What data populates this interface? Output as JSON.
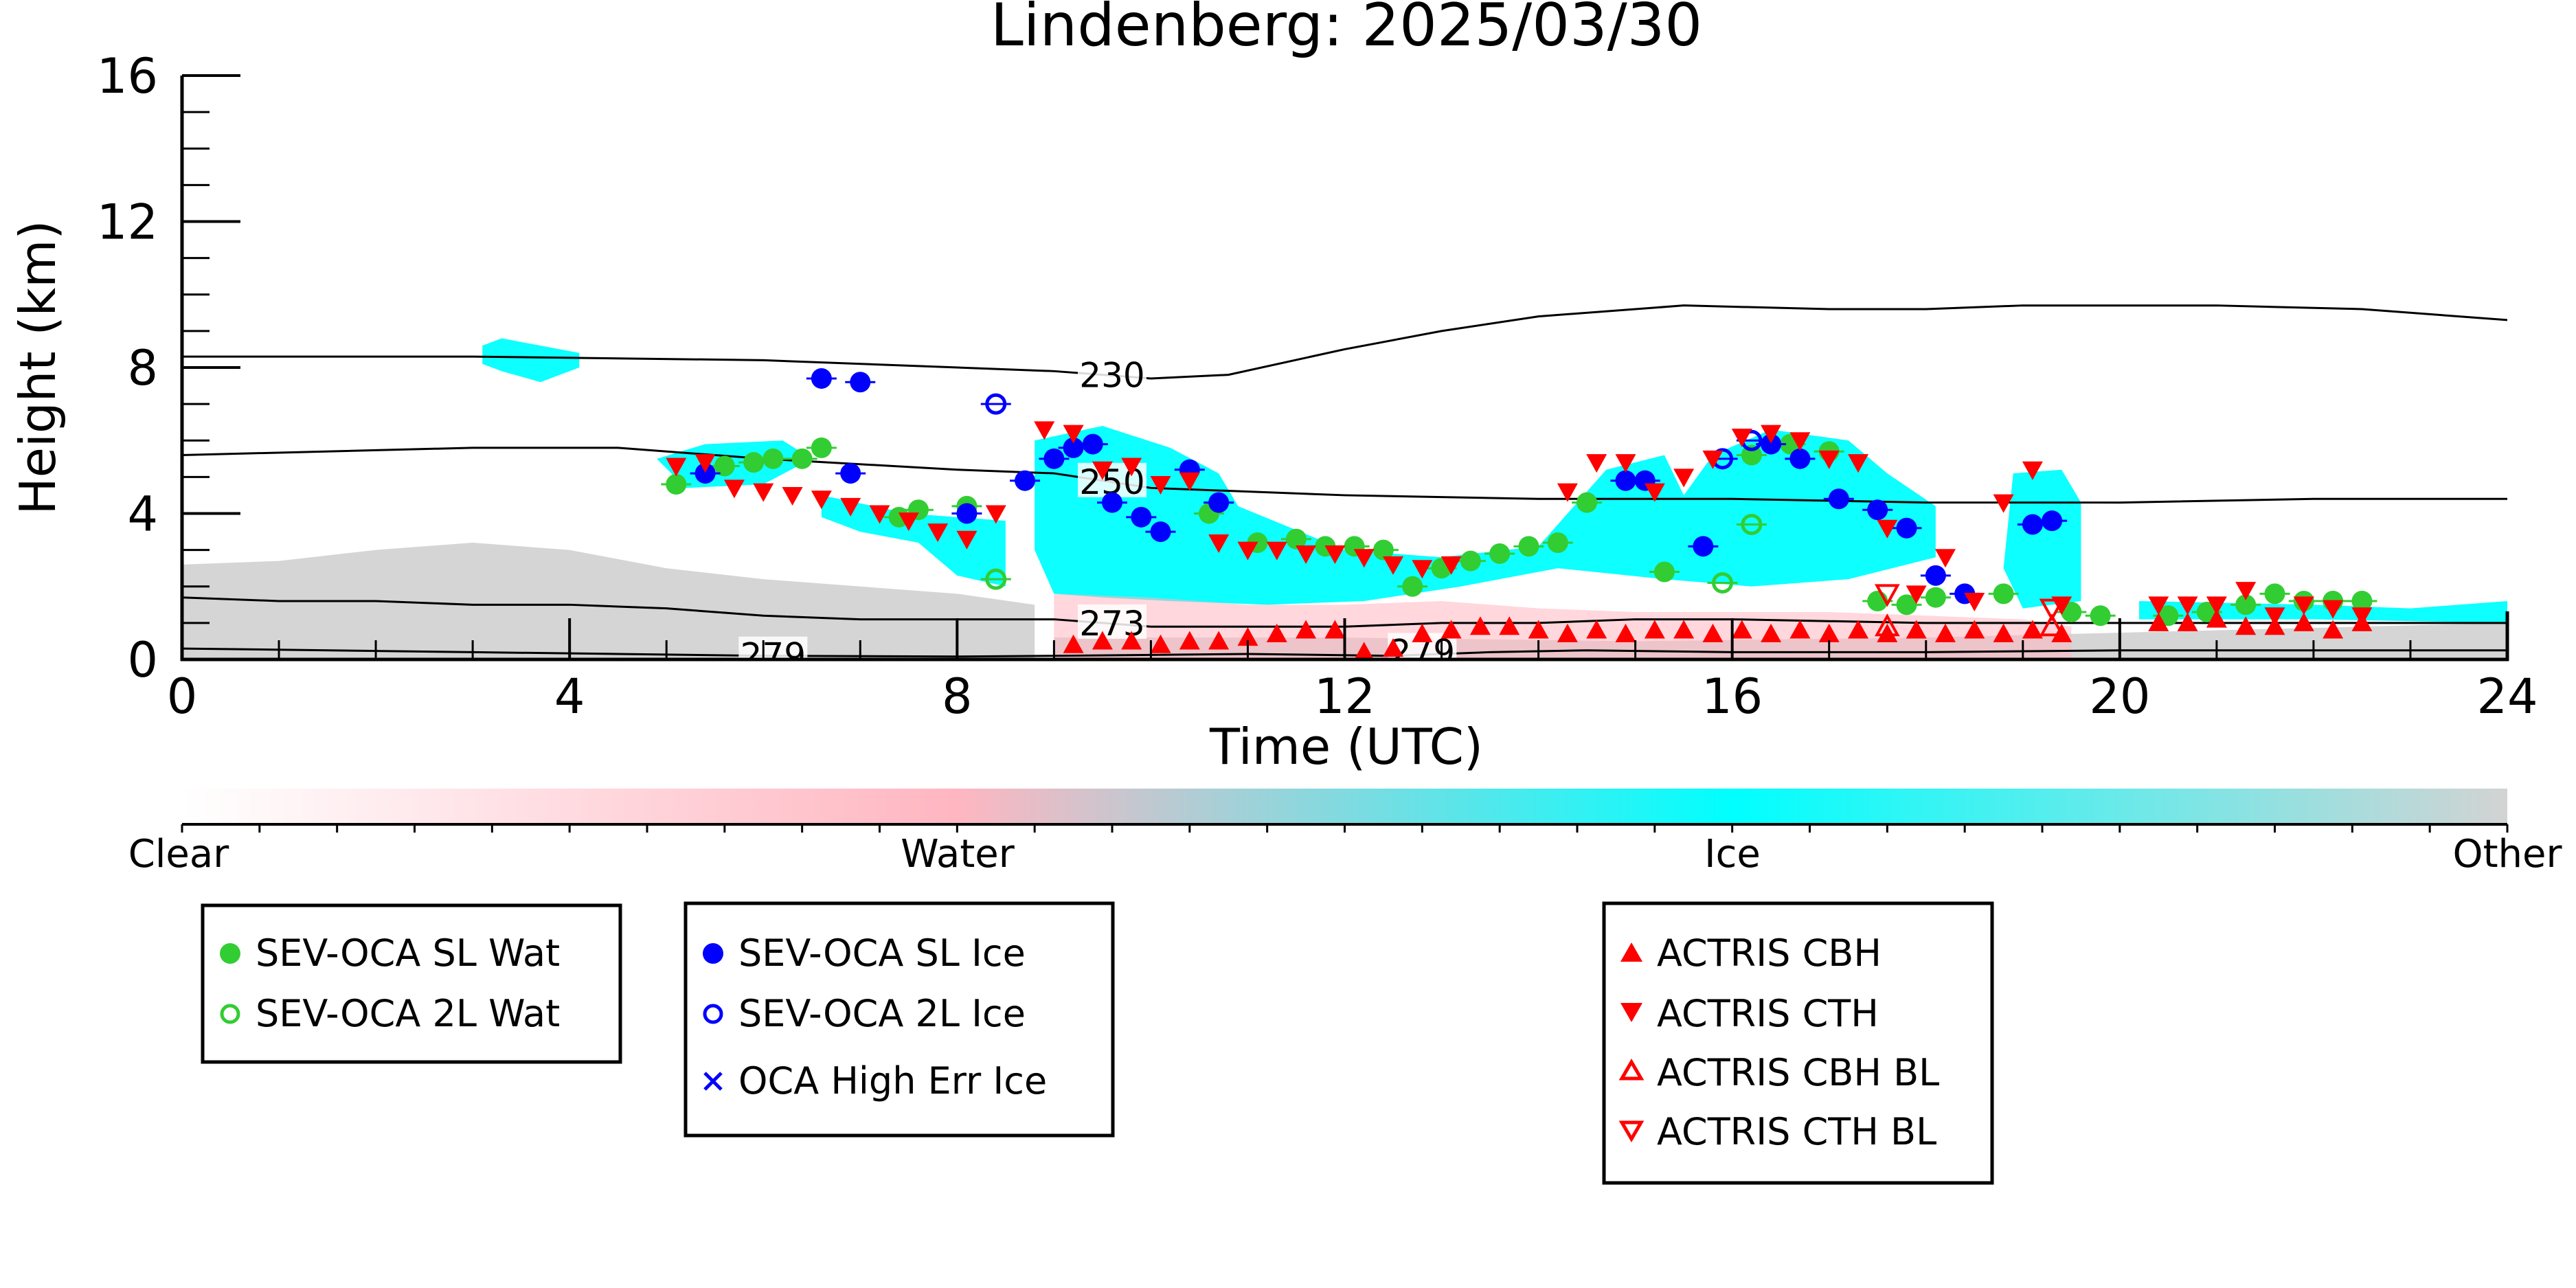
{
  "chart_data": {
    "type": "scatter",
    "title": "Lindenberg: 2025/03/30",
    "xlabel": "Time (UTC)",
    "ylabel": "Height (km)",
    "xlim": [
      0,
      24
    ],
    "ylim": [
      0,
      16
    ],
    "x_ticks": [
      "0",
      "4",
      "8",
      "12",
      "16",
      "20",
      "24"
    ],
    "y_ticks": [
      "0",
      "4",
      "8",
      "12",
      "16"
    ],
    "colorbar": {
      "labels": [
        "Clear",
        "Water",
        "Ice",
        "Other"
      ],
      "colors": {
        "clear": "#ffffff",
        "water": "#ffb6c1",
        "ice": "#00ffff",
        "other": "#d3d3d3"
      }
    },
    "contours": [
      {
        "label": "230",
        "label_x": 9.6,
        "points": [
          [
            0,
            8.3
          ],
          [
            3,
            8.3
          ],
          [
            6,
            8.2
          ],
          [
            9,
            7.9
          ],
          [
            10,
            7.7
          ],
          [
            10.8,
            7.8
          ],
          [
            12,
            8.5
          ],
          [
            13,
            9.0
          ],
          [
            14,
            9.4
          ],
          [
            15.5,
            9.7
          ],
          [
            17,
            9.6
          ],
          [
            18,
            9.6
          ],
          [
            19,
            9.7
          ],
          [
            21,
            9.7
          ],
          [
            22.5,
            9.6
          ],
          [
            24,
            9.3
          ]
        ]
      },
      {
        "label": "250",
        "label_x": 9.6,
        "points": [
          [
            0,
            5.6
          ],
          [
            3,
            5.8
          ],
          [
            4.5,
            5.8
          ],
          [
            6,
            5.5
          ],
          [
            8,
            5.2
          ],
          [
            9,
            5.1
          ],
          [
            10,
            4.7
          ],
          [
            12,
            4.5
          ],
          [
            14,
            4.4
          ],
          [
            16,
            4.4
          ],
          [
            18,
            4.3
          ],
          [
            20,
            4.3
          ],
          [
            22,
            4.4
          ],
          [
            24,
            4.4
          ]
        ]
      },
      {
        "label": "273",
        "label_x": 9.6,
        "points": [
          [
            0,
            1.7
          ],
          [
            1,
            1.6
          ],
          [
            2,
            1.6
          ],
          [
            3,
            1.5
          ],
          [
            4,
            1.5
          ],
          [
            5,
            1.4
          ],
          [
            6,
            1.2
          ],
          [
            7,
            1.1
          ],
          [
            8,
            1.1
          ],
          [
            9,
            1.1
          ],
          [
            10,
            0.9
          ],
          [
            11,
            0.9
          ],
          [
            12,
            0.9
          ],
          [
            13,
            1.0
          ],
          [
            14,
            1.0
          ],
          [
            15,
            1.1
          ],
          [
            16,
            1.1
          ],
          [
            18,
            1.0
          ],
          [
            20,
            1.0
          ],
          [
            22,
            1.0
          ],
          [
            24,
            1.0
          ]
        ]
      },
      {
        "label": "279",
        "label_x": 6.1,
        "points": [
          [
            0,
            0.3
          ],
          [
            3,
            0.2
          ],
          [
            6,
            0.1
          ],
          [
            8,
            0.08
          ],
          [
            9,
            0.1
          ],
          [
            11,
            0.15
          ],
          [
            12.5,
            0.1
          ],
          [
            13.5,
            0.2
          ],
          [
            14.5,
            0.25
          ],
          [
            16,
            0.2
          ],
          [
            18,
            0.2
          ],
          [
            20,
            0.25
          ],
          [
            22,
            0.25
          ],
          [
            24,
            0.25
          ]
        ]
      },
      {
        "label": "279",
        "label_x": 12.8,
        "points": []
      }
    ],
    "cloud_regions": [
      {
        "phase": "other",
        "points": [
          [
            0,
            0
          ],
          [
            0,
            2.6
          ],
          [
            1,
            2.7
          ],
          [
            2,
            3.0
          ],
          [
            3,
            3.2
          ],
          [
            4,
            3.0
          ],
          [
            5,
            2.5
          ],
          [
            6,
            2.2
          ],
          [
            7,
            2.0
          ],
          [
            8,
            1.8
          ],
          [
            8.8,
            1.5
          ],
          [
            8.8,
            0
          ]
        ]
      },
      {
        "phase": "other",
        "points": [
          [
            9,
            0
          ],
          [
            9,
            0.6
          ],
          [
            12,
            0.6
          ],
          [
            15,
            0.5
          ],
          [
            18,
            0.6
          ],
          [
            21,
            0.8
          ],
          [
            24,
            1.0
          ],
          [
            24,
            0
          ]
        ]
      },
      {
        "phase": "ice",
        "points": [
          [
            3.1,
            8.6
          ],
          [
            3.3,
            8.8
          ],
          [
            3.7,
            8.6
          ],
          [
            4.1,
            8.4
          ],
          [
            4.1,
            8.0
          ],
          [
            3.7,
            7.6
          ],
          [
            3.3,
            7.9
          ],
          [
            3.1,
            8.1
          ]
        ]
      },
      {
        "phase": "ice",
        "points": [
          [
            4.9,
            5.5
          ],
          [
            5.4,
            5.9
          ],
          [
            6.2,
            6.0
          ],
          [
            6.5,
            5.5
          ],
          [
            6.0,
            4.8
          ],
          [
            5.2,
            4.7
          ]
        ]
      },
      {
        "phase": "ice",
        "points": [
          [
            6.6,
            4.5
          ],
          [
            7.5,
            4.0
          ],
          [
            8.0,
            3.9
          ],
          [
            8.5,
            3.8
          ],
          [
            8.5,
            2.0
          ],
          [
            8.0,
            2.3
          ],
          [
            7.6,
            3.2
          ],
          [
            7.0,
            3.5
          ],
          [
            6.6,
            3.9
          ]
        ]
      },
      {
        "phase": "ice",
        "points": [
          [
            8.8,
            6.0
          ],
          [
            9.5,
            6.4
          ],
          [
            10.2,
            5.8
          ],
          [
            10.7,
            5.1
          ],
          [
            10.9,
            4.2
          ],
          [
            12.0,
            3.0
          ],
          [
            13.0,
            2.8
          ],
          [
            14.0,
            3.1
          ],
          [
            14.3,
            4.0
          ],
          [
            14.7,
            5.2
          ],
          [
            15.3,
            5.6
          ],
          [
            15.5,
            4.5
          ],
          [
            15.8,
            5.6
          ],
          [
            16.4,
            6.3
          ],
          [
            17.2,
            6.0
          ],
          [
            17.6,
            5.1
          ],
          [
            18.1,
            4.2
          ],
          [
            18.1,
            2.8
          ],
          [
            17.2,
            2.2
          ],
          [
            16.2,
            2.0
          ],
          [
            15.3,
            2.2
          ],
          [
            14.2,
            2.5
          ],
          [
            13.2,
            2.0
          ],
          [
            12.2,
            1.6
          ],
          [
            11.2,
            1.5
          ],
          [
            10.2,
            1.6
          ],
          [
            9.5,
            1.7
          ],
          [
            9.0,
            1.8
          ],
          [
            8.8,
            3.0
          ]
        ]
      },
      {
        "phase": "ice",
        "points": [
          [
            18.9,
            5.1
          ],
          [
            19.4,
            5.2
          ],
          [
            19.6,
            4.3
          ],
          [
            19.6,
            1.6
          ],
          [
            19.0,
            1.4
          ],
          [
            18.8,
            2.5
          ]
        ]
      },
      {
        "phase": "ice",
        "points": [
          [
            20.2,
            1.6
          ],
          [
            22.0,
            1.5
          ],
          [
            23.0,
            1.4
          ],
          [
            24,
            1.6
          ],
          [
            24,
            1.0
          ],
          [
            22,
            1.1
          ],
          [
            20.2,
            1.1
          ]
        ]
      },
      {
        "phase": "water",
        "points": [
          [
            9.0,
            1.8
          ],
          [
            10.0,
            1.7
          ],
          [
            11.0,
            1.5
          ],
          [
            12.0,
            1.5
          ],
          [
            13.0,
            1.6
          ],
          [
            14.0,
            1.4
          ],
          [
            15.0,
            1.3
          ],
          [
            16.0,
            1.3
          ],
          [
            17.0,
            1.3
          ],
          [
            18.0,
            1.2
          ],
          [
            19.0,
            1.1
          ],
          [
            19.5,
            0.9
          ],
          [
            19.5,
            0.0
          ],
          [
            9.0,
            0.0
          ]
        ]
      }
    ],
    "series": [
      {
        "name": "SEV-OCA SL Wat",
        "marker": "circle",
        "fill": true,
        "color": "#32cd32",
        "x": [
          5.1,
          5.6,
          5.9,
          6.1,
          6.4,
          6.6,
          7.4,
          7.6,
          8.1,
          10.6,
          11.1,
          11.5,
          11.8,
          12.1,
          12.4,
          12.7,
          13.0,
          13.3,
          13.6,
          13.9,
          14.2,
          14.5,
          15.3,
          16.2,
          16.6,
          17.0,
          17.5,
          17.8,
          18.1,
          18.8,
          19.5,
          19.8,
          20.5,
          20.9,
          21.3,
          21.6,
          21.9,
          22.2,
          22.5
        ],
        "y": [
          4.8,
          5.3,
          5.4,
          5.5,
          5.5,
          5.8,
          3.9,
          4.1,
          4.2,
          4.0,
          3.2,
          3.3,
          3.1,
          3.1,
          3.0,
          2.0,
          2.5,
          2.7,
          2.9,
          3.1,
          3.2,
          4.3,
          2.4,
          5.6,
          5.9,
          5.7,
          1.6,
          1.5,
          1.7,
          1.8,
          1.3,
          1.2,
          1.2,
          1.3,
          1.5,
          1.8,
          1.6,
          1.6,
          1.6
        ]
      },
      {
        "name": "SEV-OCA 2L Wat",
        "marker": "circle",
        "fill": false,
        "color": "#32cd32",
        "x": [
          8.4,
          15.9,
          16.2
        ],
        "y": [
          2.2,
          2.1,
          3.7
        ]
      },
      {
        "name": "SEV-OCA SL Ice",
        "marker": "circle",
        "fill": true,
        "color": "#0000ff",
        "x": [
          5.4,
          6.6,
          6.9,
          7.0,
          8.1,
          8.7,
          9.0,
          9.2,
          9.4,
          9.6,
          9.9,
          10.1,
          10.4,
          10.7,
          14.9,
          15.1,
          15.7,
          16.4,
          16.7,
          17.1,
          17.5,
          17.8,
          18.1,
          18.4,
          19.1,
          19.3
        ],
        "y": [
          5.1,
          7.7,
          5.1,
          7.6,
          4.0,
          4.9,
          5.5,
          5.8,
          5.9,
          4.3,
          3.9,
          3.5,
          5.2,
          4.3,
          4.9,
          4.9,
          3.1,
          5.9,
          5.5,
          4.4,
          4.1,
          3.6,
          2.3,
          1.8,
          3.7,
          3.8
        ]
      },
      {
        "name": "SEV-OCA 2L Ice",
        "marker": "circle",
        "fill": false,
        "color": "#0000ff",
        "x": [
          8.4,
          15.9,
          16.2
        ],
        "y": [
          7.0,
          5.5,
          6.0
        ]
      },
      {
        "name": "OCA High Err Ice",
        "marker": "x",
        "fill": false,
        "color": "#0000ff",
        "x": [],
        "y": []
      },
      {
        "name": "ACTRIS CBH",
        "marker": "triangle-up",
        "fill": true,
        "color": "#ff0000",
        "x": [
          9.2,
          9.5,
          9.8,
          10.1,
          10.4,
          10.7,
          11.0,
          11.3,
          11.6,
          11.9,
          12.2,
          12.5,
          12.8,
          13.1,
          13.4,
          13.7,
          14.0,
          14.3,
          14.6,
          14.9,
          15.2,
          15.5,
          15.8,
          16.1,
          16.4,
          16.7,
          17.0,
          17.3,
          17.6,
          17.9,
          18.2,
          18.5,
          18.8,
          19.1,
          19.4,
          20.4,
          20.7,
          21.0,
          21.3,
          21.6,
          21.9,
          22.2,
          22.5
        ],
        "y": [
          0.4,
          0.5,
          0.5,
          0.4,
          0.5,
          0.5,
          0.6,
          0.7,
          0.8,
          0.8,
          0.2,
          0.3,
          0.7,
          0.8,
          0.9,
          0.9,
          0.8,
          0.7,
          0.8,
          0.7,
          0.8,
          0.8,
          0.7,
          0.8,
          0.7,
          0.8,
          0.7,
          0.8,
          0.7,
          0.8,
          0.7,
          0.8,
          0.7,
          0.8,
          0.7,
          1.0,
          1.0,
          1.1,
          0.9,
          0.9,
          1.0,
          0.8,
          1.0
        ]
      },
      {
        "name": "ACTRIS CTH",
        "marker": "triangle-down",
        "fill": true,
        "color": "#ff0000",
        "x": [
          5.1,
          5.4,
          5.7,
          6.0,
          6.3,
          6.6,
          6.9,
          7.2,
          7.5,
          7.8,
          8.1,
          8.4,
          8.9,
          9.2,
          9.5,
          9.8,
          10.1,
          10.4,
          10.7,
          11.0,
          11.3,
          11.6,
          11.9,
          12.2,
          12.5,
          12.8,
          13.1,
          14.3,
          14.6,
          14.9,
          15.2,
          15.5,
          15.8,
          16.1,
          16.4,
          16.7,
          17.0,
          17.3,
          17.6,
          17.9,
          18.2,
          18.5,
          18.8,
          19.1,
          19.4,
          20.4,
          20.7,
          21.0,
          21.3,
          21.6,
          21.9,
          22.2,
          22.5
        ],
        "y": [
          5.3,
          5.4,
          4.7,
          4.6,
          4.5,
          4.4,
          4.2,
          4.0,
          3.8,
          3.5,
          3.3,
          4.0,
          6.3,
          6.2,
          5.2,
          5.3,
          4.8,
          4.9,
          3.2,
          3.0,
          3.0,
          2.9,
          2.9,
          2.8,
          2.6,
          2.5,
          2.6,
          4.6,
          5.4,
          5.4,
          4.6,
          5.0,
          5.5,
          6.1,
          6.2,
          6.0,
          5.5,
          5.4,
          3.6,
          1.8,
          2.8,
          1.6,
          4.3,
          5.2,
          1.5,
          1.5,
          1.5,
          1.5,
          1.9,
          1.2,
          1.5,
          1.4,
          1.2
        ]
      },
      {
        "name": "ACTRIS CBH BL",
        "marker": "triangle-up",
        "fill": false,
        "color": "#ff0000",
        "x": [
          17.6,
          19.3
        ],
        "y": [
          0.9,
          0.9
        ]
      },
      {
        "name": "ACTRIS CTH BL",
        "marker": "triangle-down",
        "fill": false,
        "color": "#ff0000",
        "x": [
          17.6,
          19.3
        ],
        "y": [
          1.8,
          1.4
        ]
      }
    ],
    "legends": [
      {
        "entries": [
          "SEV-OCA SL Wat",
          "SEV-OCA 2L Wat"
        ]
      },
      {
        "entries": [
          "SEV-OCA SL Ice",
          "SEV-OCA 2L Ice",
          "OCA High Err Ice"
        ]
      },
      {
        "entries": [
          "ACTRIS CBH",
          "ACTRIS CTH",
          "ACTRIS CBH BL",
          "ACTRIS CTH BL"
        ]
      }
    ]
  }
}
